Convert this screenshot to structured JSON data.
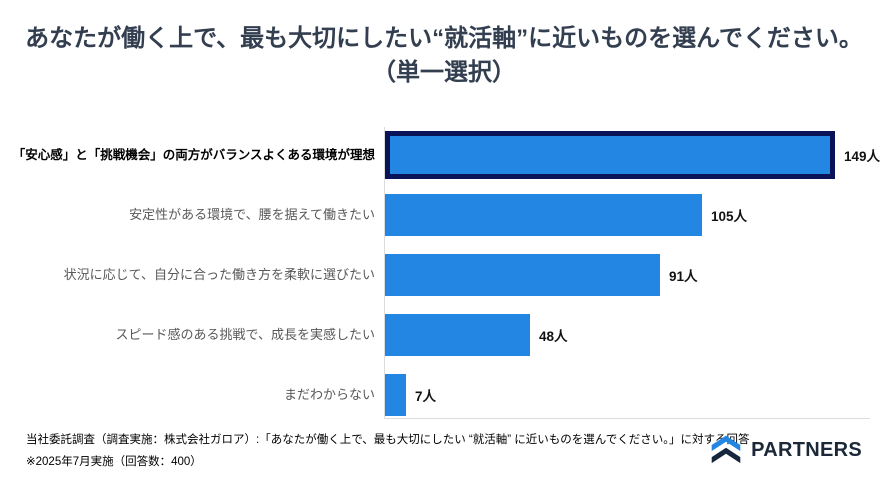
{
  "title": {
    "line1": "あなたが働く上で、最も大切にしたい“就活軸”に近いものを選んでください。",
    "line2": "（単一選択）"
  },
  "chart_data": {
    "type": "bar",
    "orientation": "horizontal",
    "categories": [
      "「安心感」と「挑戦機会」の両方がバランスよくある環境が理想",
      "安定性がある環境で、腰を据えて働きたい",
      "状況に応じて、自分に合った働き方を柔軟に選びたい",
      "スピード感のある挑戦で、成長を実感したい",
      "まだわからない"
    ],
    "values": [
      149,
      105,
      91,
      48,
      7
    ],
    "value_suffix": "人",
    "value_labels": [
      "149人",
      "105人",
      "91人",
      "48人",
      "7人"
    ],
    "highlighted_index": 0,
    "bar_color": "#2386E2",
    "highlight_border_color": "#0B1358",
    "axis_color": "#DCDCDC",
    "xlim": [
      0,
      160
    ],
    "grid": false,
    "legend": "none",
    "title": "あなたが働く上で、最も大切にしたい“就活軸”に近いものを選んでください。（単一選択）",
    "xlabel": "",
    "ylabel": ""
  },
  "footer": {
    "line1": "当社委託調査（調査実施：株式会社ガロア）:「あなたが働く上で、最も大切にしたい “就活軸” に近いものを選んでください。」に対する回答",
    "line2": "※2025年7月実施（回答数：400）"
  },
  "logo": {
    "text": "PARTNERS",
    "icon": "partners-chevron-mark",
    "icon_colors": [
      "#2386E2",
      "#16263C"
    ]
  }
}
